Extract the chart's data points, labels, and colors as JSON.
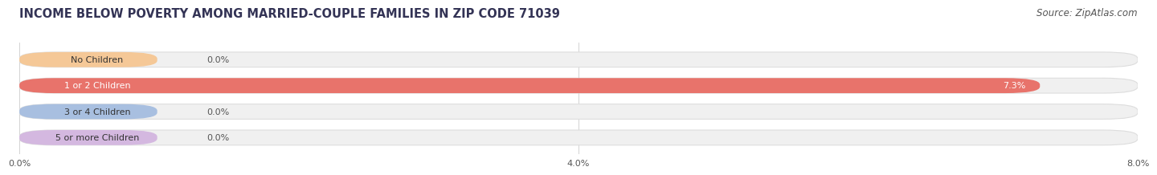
{
  "title": "INCOME BELOW POVERTY AMONG MARRIED-COUPLE FAMILIES IN ZIP CODE 71039",
  "source": "Source: ZipAtlas.com",
  "categories": [
    "No Children",
    "1 or 2 Children",
    "3 or 4 Children",
    "5 or more Children"
  ],
  "values": [
    0.0,
    7.3,
    0.0,
    0.0
  ],
  "bar_colors": [
    "#f5c897",
    "#e8736b",
    "#a8bfe0",
    "#d4b8e0"
  ],
  "text_colors": [
    "#555555",
    "#ffffff",
    "#555555",
    "#555555"
  ],
  "background_color": "#ffffff",
  "bar_bg_color": "#f0f0f0",
  "bar_border_color": "#dddddd",
  "xlim": [
    0,
    8.0
  ],
  "xticks": [
    0.0,
    4.0,
    8.0
  ],
  "xtick_labels": [
    "0.0%",
    "4.0%",
    "8.0%"
  ],
  "title_fontsize": 10.5,
  "source_fontsize": 8.5,
  "label_fontsize": 8,
  "value_fontsize": 8,
  "bar_height": 0.58,
  "fig_width": 14.06,
  "fig_height": 2.32
}
